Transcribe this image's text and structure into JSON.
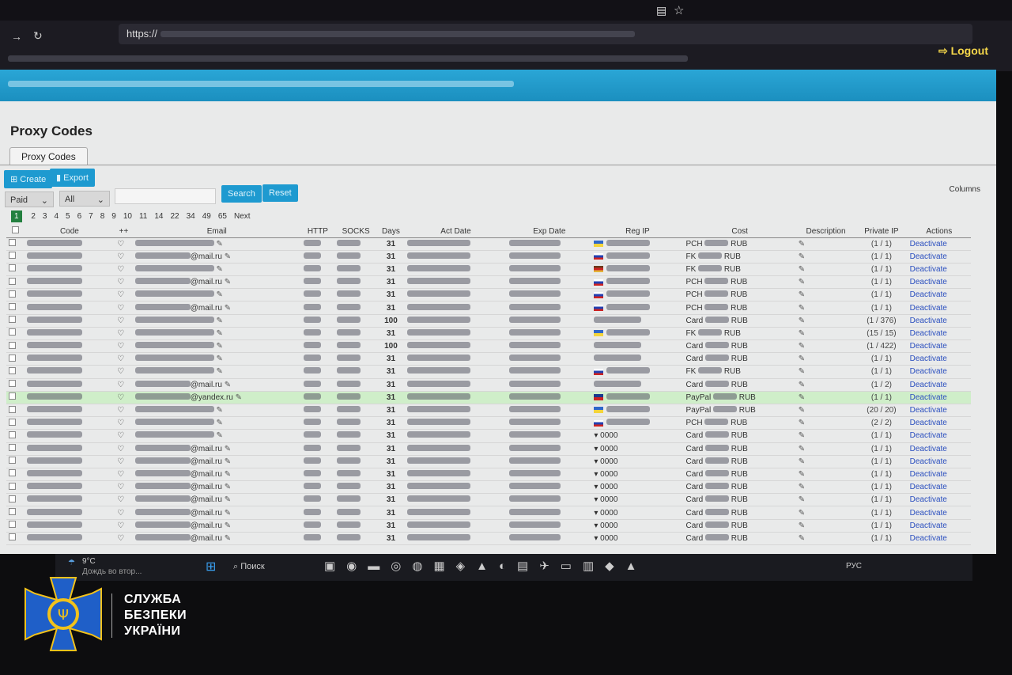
{
  "browser": {
    "url_prefix": "https://",
    "logout_label": "Logout"
  },
  "page": {
    "title": "Proxy Codes",
    "tab": "Proxy Codes",
    "columns_label": "Columns"
  },
  "toolbar": {
    "create_label": "Create",
    "export_label": "Export",
    "filter_status": "Paid",
    "filter_type": "All",
    "search_placeholder": "",
    "search_label": "Search",
    "reset_label": "Reset"
  },
  "pagination": {
    "current": "1",
    "pages": [
      "2",
      "3",
      "4",
      "5",
      "6",
      "7",
      "8",
      "9",
      "10",
      "11",
      "14",
      "22",
      "34",
      "49",
      "65"
    ],
    "next": "Next"
  },
  "table": {
    "headers": [
      "",
      "Code",
      "++",
      "Email",
      "HTTP",
      "SOCKS",
      "Days",
      "Act Date",
      "Exp Date",
      "Reg IP",
      "Cost",
      "Description",
      "Private IP",
      "Actions"
    ],
    "rows": [
      {
        "days": "31",
        "email": "",
        "flag": "ua",
        "reg_ip": "",
        "method": "PCH",
        "currency": "RUB",
        "private_ip": "(1 / 1)",
        "action": "Deactivate"
      },
      {
        "days": "31",
        "email": "@mail.ru",
        "flag": "ru",
        "reg_ip": "",
        "method": "FK",
        "currency": "RUB",
        "private_ip": "(1 / 1)",
        "action": "Deactivate"
      },
      {
        "days": "31",
        "email": "",
        "flag": "other",
        "reg_ip": "",
        "method": "FK",
        "currency": "RUB",
        "private_ip": "(1 / 1)",
        "action": "Deactivate"
      },
      {
        "days": "31",
        "email": "@mail.ru",
        "flag": "ru",
        "reg_ip": "",
        "method": "PCH",
        "currency": "RUB",
        "private_ip": "(1 / 1)",
        "action": "Deactivate"
      },
      {
        "days": "31",
        "email": "",
        "flag": "ru",
        "reg_ip": "",
        "method": "PCH",
        "currency": "RUB",
        "private_ip": "(1 / 1)",
        "action": "Deactivate"
      },
      {
        "days": "31",
        "email": "@mail.ru",
        "flag": "ru",
        "reg_ip": "",
        "method": "PCH",
        "currency": "RUB",
        "private_ip": "(1 / 1)",
        "action": "Deactivate"
      },
      {
        "days": "100",
        "email": "",
        "flag": "",
        "reg_ip": "",
        "method": "Card",
        "currency": "RUB",
        "private_ip": "(1 / 376)",
        "action": "Deactivate"
      },
      {
        "days": "31",
        "email": "",
        "flag": "ua",
        "reg_ip": "",
        "method": "FK",
        "currency": "RUB",
        "private_ip": "(15 / 15)",
        "action": "Deactivate"
      },
      {
        "days": "100",
        "email": "",
        "flag": "",
        "reg_ip": "",
        "method": "Card",
        "currency": "RUB",
        "private_ip": "(1 / 422)",
        "action": "Deactivate"
      },
      {
        "days": "31",
        "email": "",
        "flag": "",
        "reg_ip": "",
        "method": "Card",
        "currency": "RUB",
        "private_ip": "(1 / 1)",
        "action": "Deactivate"
      },
      {
        "days": "31",
        "email": "",
        "flag": "ru",
        "reg_ip": "",
        "method": "FK",
        "currency": "RUB",
        "private_ip": "(1 / 1)",
        "action": "Deactivate"
      },
      {
        "days": "31",
        "email": "@mail.ru",
        "flag": "",
        "reg_ip": "",
        "method": "Card",
        "currency": "RUB",
        "private_ip": "(1 / 2)",
        "action": "Deactivate"
      },
      {
        "days": "31",
        "email": "@yandex.ru",
        "flag": "gb",
        "reg_ip": "",
        "method": "PayPal",
        "currency": "RUB",
        "private_ip": "(1 / 1)",
        "action": "Deactivate",
        "highlight": true
      },
      {
        "days": "31",
        "email": "",
        "flag": "ua",
        "reg_ip": "",
        "method": "PayPal",
        "currency": "RUB",
        "private_ip": "(20 / 20)",
        "action": "Deactivate"
      },
      {
        "days": "31",
        "email": "",
        "flag": "ru",
        "reg_ip": "",
        "method": "PCH",
        "currency": "RUB",
        "private_ip": "(2 / 2)",
        "action": "Deactivate"
      },
      {
        "days": "31",
        "email": "",
        "flag": "",
        "reg_ip": "0000",
        "method": "Card",
        "currency": "RUB",
        "private_ip": "(1 / 1)",
        "action": "Deactivate"
      },
      {
        "days": "31",
        "email": "@mail.ru",
        "flag": "",
        "reg_ip": "0000",
        "method": "Card",
        "currency": "RUB",
        "private_ip": "(1 / 1)",
        "action": "Deactivate"
      },
      {
        "days": "31",
        "email": "@mail.ru",
        "flag": "",
        "reg_ip": "0000",
        "method": "Card",
        "currency": "RUB",
        "private_ip": "(1 / 1)",
        "action": "Deactivate"
      },
      {
        "days": "31",
        "email": "@mail.ru",
        "flag": "",
        "reg_ip": "0000",
        "method": "Card",
        "currency": "RUB",
        "private_ip": "(1 / 1)",
        "action": "Deactivate"
      },
      {
        "days": "31",
        "email": "@mail.ru",
        "flag": "",
        "reg_ip": "0000",
        "method": "Card",
        "currency": "RUB",
        "private_ip": "(1 / 1)",
        "action": "Deactivate"
      },
      {
        "days": "31",
        "email": "@mail.ru",
        "flag": "",
        "reg_ip": "0000",
        "method": "Card",
        "currency": "RUB",
        "private_ip": "(1 / 1)",
        "action": "Deactivate"
      },
      {
        "days": "31",
        "email": "@mail.ru",
        "flag": "",
        "reg_ip": "0000",
        "method": "Card",
        "currency": "RUB",
        "private_ip": "(1 / 1)",
        "action": "Deactivate"
      },
      {
        "days": "31",
        "email": "@mail.ru",
        "flag": "",
        "reg_ip": "0000",
        "method": "Card",
        "currency": "RUB",
        "private_ip": "(1 / 1)",
        "action": "Deactivate"
      },
      {
        "days": "31",
        "email": "@mail.ru",
        "flag": "",
        "reg_ip": "0000",
        "method": "Card",
        "currency": "RUB",
        "private_ip": "(1 / 1)",
        "action": "Deactivate"
      }
    ]
  },
  "taskbar": {
    "weather_temp": "9°C",
    "weather_text": "Дождь во втор...",
    "search_label": "Поиск",
    "language": "РУС"
  },
  "watermark": {
    "org": [
      "СЛУЖБА",
      "БЕЗПЕКИ",
      "УКРАЇНИ"
    ],
    "colors": {
      "blue": "#1f5fc8",
      "yellow": "#f2c21b"
    }
  },
  "colors": {
    "accent": "#1e9ad0",
    "highlight_row": "#cfeec9",
    "page_current": "#23803f",
    "logout": "#f4d64a"
  }
}
